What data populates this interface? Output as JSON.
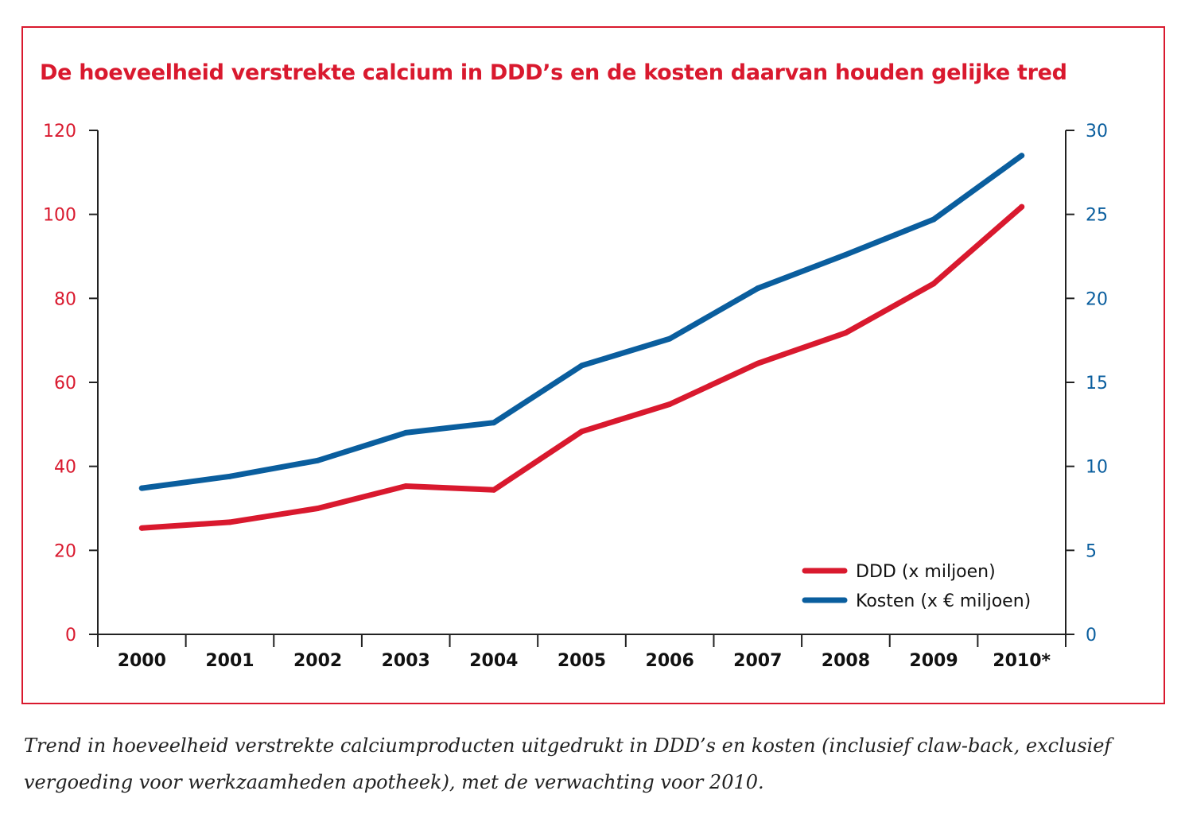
{
  "title": "De hoeveelheid verstrekte calcium in DDD’s en de kosten daarvan houden gelijke tred",
  "caption": {
    "line1": "Trend in hoeveelheid verstrekte calciumproducten uitgedrukt in DDD’s en kosten (inclusief claw-back, exclusief",
    "line2": "vergoeding voor werkzaamheden apotheek), met de verwachting voor 2010."
  },
  "colors": {
    "red": "#d9192e",
    "blue": "#0a5e9e",
    "axis": "#222222"
  },
  "chart_data": {
    "type": "line",
    "categories": [
      "2000",
      "2001",
      "2002",
      "2003",
      "2004",
      "2005",
      "2006",
      "2007",
      "2008",
      "2009",
      "2010*"
    ],
    "y_left": {
      "ylim": [
        0,
        120
      ],
      "ticks": [
        0,
        20,
        40,
        60,
        80,
        100,
        120
      ]
    },
    "y_right": {
      "ylim": [
        0,
        30
      ],
      "ticks": [
        0,
        5,
        10,
        15,
        20,
        25,
        30
      ]
    },
    "series": [
      {
        "name": "DDD (x miljoen)",
        "axis": "left",
        "color": "#d9192e",
        "values": [
          25.3,
          26.7,
          30.0,
          35.3,
          34.4,
          48.3,
          54.8,
          64.5,
          71.8,
          83.5,
          101.8
        ]
      },
      {
        "name": "Kosten (x € miljoen)",
        "axis": "right",
        "color": "#0a5e9e",
        "values": [
          8.7,
          9.4,
          10.35,
          12.0,
          12.6,
          16.0,
          17.6,
          20.6,
          22.6,
          24.7,
          28.5
        ]
      }
    ],
    "grid": false,
    "legend_position": "bottom-right"
  }
}
